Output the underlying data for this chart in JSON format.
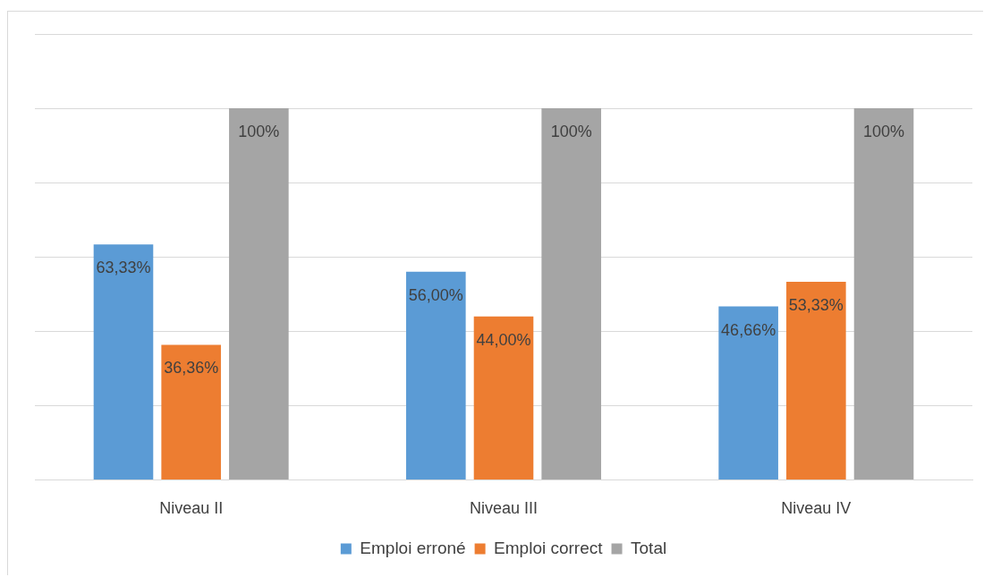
{
  "chart_data": {
    "type": "bar",
    "categories": [
      "Niveau II",
      "Niveau III",
      "Niveau IV"
    ],
    "series": [
      {
        "name": "Emploi erroné",
        "color": "#5b9bd5",
        "values": [
          63.33,
          56.0,
          46.66
        ],
        "value_labels": [
          "63,33%",
          "56,00%",
          "46,66%"
        ]
      },
      {
        "name": "Emploi correct",
        "color": "#ed7d31",
        "values": [
          36.36,
          44.0,
          53.33
        ],
        "value_labels": [
          "36,36%",
          "44,00%",
          "53,33%"
        ]
      },
      {
        "name": "Total",
        "color": "#a5a5a5",
        "values": [
          100,
          100,
          100
        ],
        "value_labels": [
          "100%",
          "100%",
          "100%"
        ]
      }
    ],
    "ylim": [
      0,
      120
    ],
    "yticks": [
      {
        "value": 0,
        "label": null
      },
      {
        "value": 20,
        "label": null
      },
      {
        "value": 40,
        "label": null
      },
      {
        "value": 60,
        "label": null
      },
      {
        "value": 80,
        "label": null
      },
      {
        "value": 100,
        "label": null
      },
      {
        "value": 120,
        "label": null
      }
    ],
    "grid": "y",
    "legend": "bottom",
    "tick_labels": "x"
  }
}
